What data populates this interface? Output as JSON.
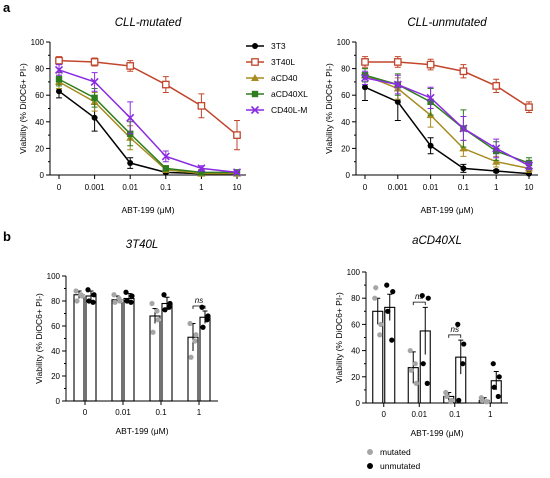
{
  "figure": {
    "panel_a_letter": "a",
    "panel_b_letter": "b"
  },
  "chart_data": [
    {
      "type": "line",
      "panel": "a",
      "title": "CLL-mutated",
      "xlabel": "ABT-199 (μM)",
      "ylabel": "Viability (% DiOC6+ PI-)",
      "x_ticks": [
        "0",
        "0.001",
        "0.01",
        "0.1",
        "1",
        "10"
      ],
      "y_ticks": [
        "0",
        "10",
        "20",
        "30",
        "40",
        "50",
        "60",
        "70",
        "80",
        "90",
        "100"
      ],
      "ylim": [
        0,
        100
      ],
      "legend_position": "right",
      "series": [
        {
          "name": "3T3",
          "color": "#000000",
          "marker": "circle",
          "values": [
            63,
            43,
            9,
            2,
            1,
            1
          ],
          "err": [
            5,
            10,
            4,
            1,
            1,
            1
          ]
        },
        {
          "name": "3T40L",
          "color": "#c1462c",
          "marker": "square-open",
          "values": [
            86,
            85,
            82,
            68,
            52,
            30
          ],
          "err": [
            3,
            3,
            4,
            6,
            9,
            11
          ]
        },
        {
          "name": "aCD40",
          "color": "#a68b1f",
          "marker": "triangle",
          "values": [
            70,
            55,
            28,
            4,
            1,
            1
          ],
          "err": [
            5,
            7,
            9,
            2,
            1,
            1
          ]
        },
        {
          "name": "aCD40XL",
          "color": "#2e7d1e",
          "marker": "square",
          "values": [
            72,
            58,
            31,
            5,
            2,
            2
          ],
          "err": [
            5,
            7,
            9,
            2,
            1,
            1
          ]
        },
        {
          "name": "CD40L-M",
          "color": "#8a2be2",
          "marker": "x",
          "values": [
            79,
            70,
            43,
            14,
            5,
            2
          ],
          "err": [
            4,
            7,
            12,
            4,
            2,
            1
          ]
        }
      ]
    },
    {
      "type": "line",
      "panel": "a",
      "title": "CLL-unmutated",
      "xlabel": "ABT-199 (μM)",
      "ylabel": "Viability (% DiOC6+ PI-)",
      "x_ticks": [
        "0",
        "0.001",
        "0.01",
        "0.1",
        "1",
        "10"
      ],
      "y_ticks": [
        "0",
        "10",
        "20",
        "30",
        "40",
        "50",
        "60",
        "70",
        "80",
        "90",
        "100"
      ],
      "ylim": [
        0,
        100
      ],
      "series": [
        {
          "name": "3T3",
          "color": "#000000",
          "marker": "circle",
          "values": [
            66,
            55,
            22,
            5,
            3,
            1
          ],
          "err": [
            10,
            14,
            6,
            3,
            1,
            1
          ]
        },
        {
          "name": "3T40L",
          "color": "#c1462c",
          "marker": "square-open",
          "values": [
            85,
            85,
            83,
            78,
            67,
            51
          ],
          "err": [
            4,
            4,
            4,
            5,
            5,
            4
          ]
        },
        {
          "name": "aCD40",
          "color": "#a68b1f",
          "marker": "triangle",
          "values": [
            75,
            65,
            45,
            20,
            10,
            5
          ],
          "err": [
            5,
            8,
            9,
            6,
            4,
            3
          ]
        },
        {
          "name": "aCD40XL",
          "color": "#2e7d1e",
          "marker": "square",
          "values": [
            75,
            68,
            55,
            35,
            18,
            9
          ],
          "err": [
            5,
            8,
            10,
            14,
            7,
            4
          ]
        },
        {
          "name": "CD40L-M",
          "color": "#8a2be2",
          "marker": "x",
          "values": [
            73,
            68,
            58,
            35,
            20,
            7
          ],
          "err": [
            5,
            7,
            8,
            9,
            7,
            3
          ]
        }
      ]
    },
    {
      "type": "bar",
      "panel": "b",
      "title": "3T40L",
      "xlabel": "ABT-199 (μM)",
      "ylabel": "Viability (% DiOC6+ PI-)",
      "categories": [
        "0",
        "0.01",
        "0.1",
        "1"
      ],
      "y_ticks": [
        "0",
        "10",
        "20",
        "30",
        "40",
        "50",
        "60",
        "70",
        "80",
        "90",
        "100"
      ],
      "ylim": [
        0,
        100
      ],
      "annotations": [
        {
          "category": "1",
          "text": "ns"
        }
      ],
      "series": [
        {
          "name": "mutated",
          "color": "#a6a6a6",
          "values": [
            85,
            81,
            68,
            51
          ],
          "err": [
            3,
            3,
            6,
            11
          ],
          "points": [
            [
              88,
              84,
              80,
              85
            ],
            [
              85,
              80,
              79,
              82
            ],
            [
              78,
              65,
              55,
              72
            ],
            [
              62,
              53,
              35,
              48
            ]
          ]
        },
        {
          "name": "unmutated",
          "color": "#000000",
          "values": [
            84,
            82,
            78,
            67
          ],
          "err": [
            4,
            4,
            5,
            5
          ],
          "points": [
            [
              89,
              85,
              80,
              79
            ],
            [
              87,
              84,
              80,
              79
            ],
            [
              85,
              78,
              73,
              75
            ],
            [
              75,
              68,
              59,
              65
            ]
          ]
        }
      ]
    },
    {
      "type": "bar",
      "panel": "b",
      "title": "aCD40XL",
      "xlabel": "ABT-199 (μM)",
      "ylabel": "Viability (% DiOC6+ PI-)",
      "categories": [
        "0",
        "0.01",
        "0.1",
        "1"
      ],
      "y_ticks": [
        "0",
        "10",
        "20",
        "30",
        "40",
        "50",
        "60",
        "70",
        "80",
        "90",
        "100"
      ],
      "ylim": [
        0,
        100
      ],
      "annotations": [
        {
          "category": "0.01",
          "text": "ns"
        },
        {
          "category": "0.1",
          "text": "ns"
        }
      ],
      "legend_position": "bottom",
      "series": [
        {
          "name": "mutated",
          "color": "#a6a6a6",
          "values": [
            70,
            27,
            5,
            2
          ],
          "err": [
            10,
            12,
            3,
            2
          ],
          "points": [
            [
              80,
              60,
              88,
              52
            ],
            [
              40,
              15,
              25,
              30
            ],
            [
              8,
              2,
              5,
              1
            ],
            [
              4,
              1,
              2,
              1
            ]
          ]
        },
        {
          "name": "unmutated",
          "color": "#000000",
          "values": [
            73,
            55,
            35,
            17
          ],
          "err": [
            10,
            18,
            13,
            7
          ],
          "points": [
            [
              90,
              85,
              70,
              48
            ],
            [
              82,
              80,
              30,
              15
            ],
            [
              60,
              45,
              2,
              30
            ],
            [
              30,
              20,
              12,
              5
            ]
          ]
        }
      ]
    }
  ]
}
